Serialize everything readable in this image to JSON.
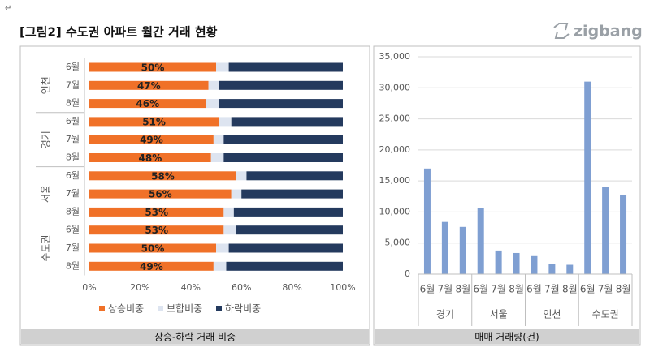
{
  "header": {
    "mark": "↵",
    "title": "[그림2] 수도권 아파트  월간 거래 현황",
    "logo": "zigbang"
  },
  "chart_data": [
    {
      "type": "stacked-bar-h",
      "title": "상승-하락 거래 비중",
      "groups": [
        "인천",
        "경기",
        "서울",
        "수도권"
      ],
      "categories": [
        "6월",
        "7월",
        "8월",
        "6월",
        "7월",
        "8월",
        "6월",
        "7월",
        "8월",
        "6월",
        "7월",
        "8월"
      ],
      "series": [
        {
          "name": "상승비중",
          "color": "#f07128",
          "values": [
            50,
            47,
            46,
            51,
            49,
            48,
            58,
            56,
            53,
            53,
            50,
            49
          ],
          "value_labels": [
            "50%",
            "47%",
            "46%",
            "51%",
            "49%",
            "48%",
            "58%",
            "56%",
            "53%",
            "53%",
            "50%",
            "49%"
          ]
        },
        {
          "name": "보합비중",
          "color": "#dde4f0",
          "values": [
            5,
            4,
            5,
            5,
            4,
            5,
            4,
            4,
            4,
            5,
            5,
            5
          ]
        },
        {
          "name": "하락비중",
          "color": "#243a5e",
          "values": [
            45,
            49,
            49,
            44,
            47,
            47,
            38,
            40,
            43,
            42,
            45,
            46
          ]
        }
      ],
      "xlim": [
        0,
        100
      ],
      "xticks": [
        {
          "value": 0,
          "label": "0%"
        },
        {
          "value": 20,
          "label": "20%"
        },
        {
          "value": 40,
          "label": "40%"
        },
        {
          "value": 60,
          "label": "60%"
        },
        {
          "value": 80,
          "label": "80%"
        },
        {
          "value": 100,
          "label": "100%"
        }
      ],
      "legend": "bottom"
    },
    {
      "type": "bar",
      "title": "매매 거래량(건)",
      "groups": [
        "경기",
        "서울",
        "인천",
        "수도권"
      ],
      "categories": [
        "6월",
        "7월",
        "8월",
        "6월",
        "7월",
        "8월",
        "6월",
        "7월",
        "8월",
        "6월",
        "7월",
        "8월"
      ],
      "values": [
        17000,
        8400,
        7600,
        10600,
        3800,
        3400,
        2900,
        1600,
        1500,
        31000,
        14100,
        12800
      ],
      "color": "#7f9fd2",
      "ylim": [
        0,
        35000
      ],
      "yticks": [
        0,
        {
          "value": 5000,
          "label": "5,000"
        },
        {
          "value": 10000,
          "label": "10,000"
        },
        {
          "value": 15000,
          "label": "15,000"
        },
        {
          "value": 20000,
          "label": "20,000"
        },
        {
          "value": 25000,
          "label": "25,000"
        },
        {
          "value": 30000,
          "label": "30,000"
        },
        {
          "value": 35000,
          "label": "35,000"
        }
      ],
      "grid": true
    }
  ]
}
